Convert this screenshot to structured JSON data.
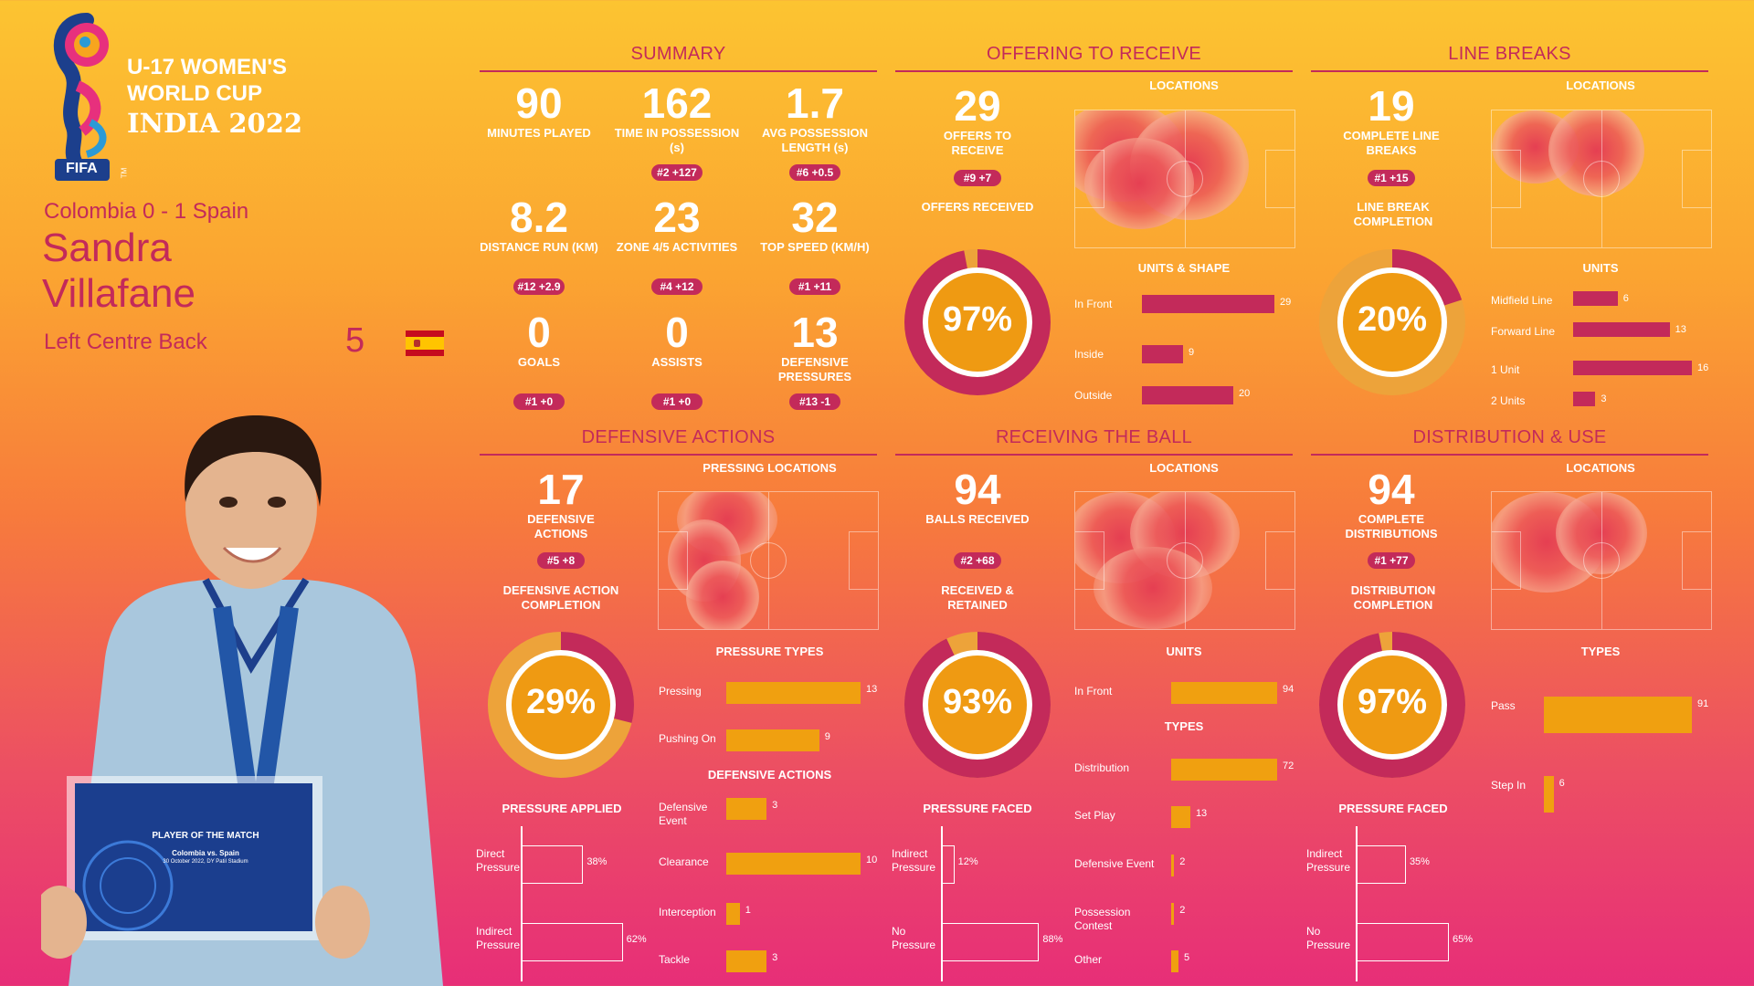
{
  "event": {
    "line1": "U-17 WOMEN'S",
    "line2": "WORLD CUP",
    "line3": "INDIA 2022",
    "fifa": "FIFA",
    "tm": "TM"
  },
  "match": {
    "score": "Colombia 0 - 1 Spain"
  },
  "player": {
    "first": "Sandra",
    "last": "Villafane",
    "position": "Left Centre Back",
    "number": "5"
  },
  "plaque": {
    "title": "PLAYER OF THE MATCH",
    "match": "Colombia vs. Spain",
    "date": "30 October 2022, DY Patil Stadium"
  },
  "colors": {
    "bar_magenta": "#c32a5a",
    "bar_orange": "#f0a010",
    "accent": "#c32a5a"
  },
  "summary": {
    "title": "SUMMARY",
    "stats": [
      {
        "value": "90",
        "label": "MINUTES PLAYED",
        "badge": ""
      },
      {
        "value": "162",
        "label": "TIME IN POSSESSION (s)",
        "badge": "#2 +127"
      },
      {
        "value": "1.7",
        "label": "AVG POSSESSION LENGTH (s)",
        "badge": "#6 +0.5"
      },
      {
        "value": "8.2",
        "label": "DISTANCE RUN (KM)",
        "badge": "#12 +2.9"
      },
      {
        "value": "23",
        "label": "ZONE 4/5 ACTIVITIES",
        "badge": "#4 +12"
      },
      {
        "value": "32",
        "label": "TOP SPEED (KM/H)",
        "badge": "#1 +11"
      },
      {
        "value": "0",
        "label": "GOALS",
        "badge": "#1 +0"
      },
      {
        "value": "0",
        "label": "ASSISTS",
        "badge": "#1 +0"
      },
      {
        "value": "13",
        "label": "DEFENSIVE PRESSURES",
        "badge": "#13 -1"
      }
    ]
  },
  "offering": {
    "title": "OFFERING TO RECEIVE",
    "value": "29",
    "label": "OFFERS TO RECEIVE",
    "badge": "#9 +7",
    "donut_label": "OFFERS RECEIVED",
    "pct": "97%",
    "pct_value": 97,
    "loc_label": "LOCATIONS",
    "units_label": "UNITS & SHAPE",
    "bars": [
      {
        "label": "In Front",
        "value": 29
      },
      {
        "label": "Inside",
        "value": 9
      },
      {
        "label": "Outside",
        "value": 20
      }
    ]
  },
  "line_breaks": {
    "title": "LINE BREAKS",
    "value": "19",
    "label": "COMPLETE LINE BREAKS",
    "badge": "#1 +15",
    "donut_label": "LINE BREAK COMPLETION",
    "pct": "20%",
    "pct_value": 20,
    "loc_label": "LOCATIONS",
    "units_label": "UNITS",
    "bars": [
      {
        "label": "Midfield Line",
        "value": 6
      },
      {
        "label": "Forward Line",
        "value": 13
      },
      {
        "label": "1 Unit",
        "value": 16
      },
      {
        "label": "2 Units",
        "value": 3
      }
    ]
  },
  "defensive": {
    "title": "DEFENSIVE ACTIONS",
    "value": "17",
    "label": "DEFENSIVE ACTIONS",
    "badge": "#5 +8",
    "donut_label": "DEFENSIVE ACTION COMPLETION",
    "pct": "29%",
    "pct_value": 29,
    "loc_label": "PRESSING LOCATIONS",
    "types_label": "PRESSURE TYPES",
    "types": [
      {
        "label": "Pressing",
        "value": 13
      },
      {
        "label": "Pushing On",
        "value": 9
      }
    ],
    "actions_label": "DEFENSIVE ACTIONS",
    "actions": [
      {
        "label": "Defensive Event",
        "value": 3
      },
      {
        "label": "Clearance",
        "value": 10
      },
      {
        "label": "Interception",
        "value": 1
      },
      {
        "label": "Tackle",
        "value": 3
      }
    ],
    "pressure_label": "PRESSURE APPLIED",
    "pressure": [
      {
        "label": "Direct Pressure",
        "value": "38%",
        "v": 38
      },
      {
        "label": "Indirect Pressure",
        "value": "62%",
        "v": 62
      }
    ]
  },
  "receiving": {
    "title": "RECEIVING THE BALL",
    "value": "94",
    "label": "BALLS RECEIVED",
    "badge": "#2 +68",
    "donut_label": "RECEIVED & RETAINED",
    "pct": "93%",
    "pct_value": 93,
    "loc_label": "LOCATIONS",
    "units_label": "UNITS",
    "units": [
      {
        "label": "In Front",
        "value": 94
      }
    ],
    "types_label": "TYPES",
    "types": [
      {
        "label": "Distribution",
        "value": 72
      },
      {
        "label": "Set Play",
        "value": 13
      },
      {
        "label": "Defensive Event",
        "value": 2
      },
      {
        "label": "Possession Contest",
        "value": 2
      },
      {
        "label": "Other",
        "value": 5
      }
    ],
    "pressure_label": "PRESSURE FACED",
    "pressure": [
      {
        "label": "Indirect Pressure",
        "value": "12%",
        "v": 12
      },
      {
        "label": "No Pressure",
        "value": "88%",
        "v": 88
      }
    ]
  },
  "distribution": {
    "title": "DISTRIBUTION & USE",
    "value": "94",
    "label": "COMPLETE DISTRIBUTIONS",
    "badge": "#1 +77",
    "donut_label": "DISTRIBUTION COMPLETION",
    "pct": "97%",
    "pct_value": 97,
    "loc_label": "LOCATIONS",
    "types_label": "TYPES",
    "types": [
      {
        "label": "Pass",
        "value": 91
      },
      {
        "label": "Step In",
        "value": 6
      }
    ],
    "pressure_label": "PRESSURE FACED",
    "pressure": [
      {
        "label": "Indirect Pressure",
        "value": "35%",
        "v": 35
      },
      {
        "label": "No Pressure",
        "value": "65%",
        "v": 65
      }
    ]
  }
}
